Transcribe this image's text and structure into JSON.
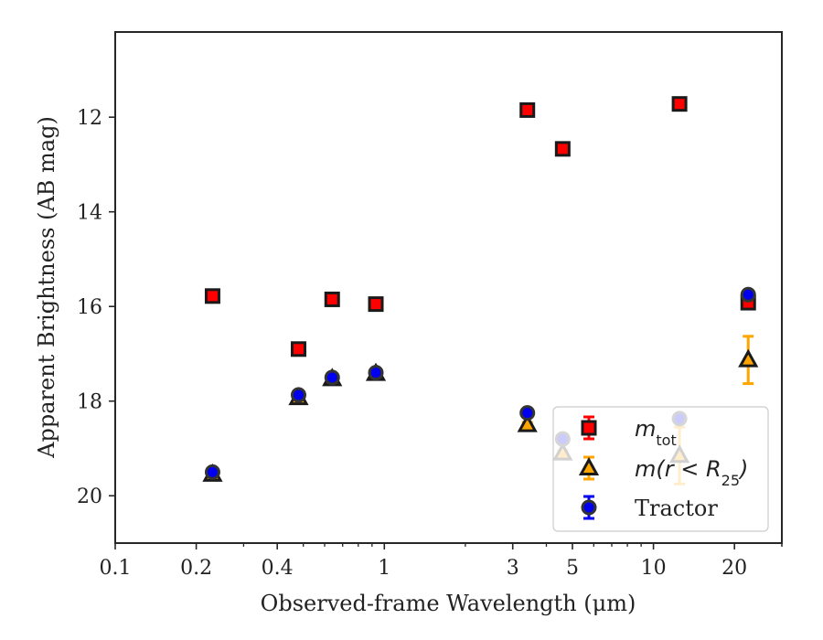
{
  "chart_data": {
    "type": "scatter",
    "xlabel": "Observed-frame Wavelength (μm)",
    "ylabel": "Apparent Brightness (AB mag)",
    "x_scale": "log",
    "xlim": [
      0.1,
      30
    ],
    "ylim": [
      21,
      10.2
    ],
    "y_inverted": true,
    "grid": false,
    "legend_position": "bottom-right",
    "x_ticks": [
      {
        "value": 0.1,
        "label": "0.1"
      },
      {
        "value": 0.2,
        "label": "0.2"
      },
      {
        "value": 0.4,
        "label": "0.4"
      },
      {
        "value": 1,
        "label": "1"
      },
      {
        "value": 3,
        "label": "3"
      },
      {
        "value": 5,
        "label": "5"
      },
      {
        "value": 10,
        "label": "10"
      },
      {
        "value": 20,
        "label": "20"
      }
    ],
    "y_ticks": [
      {
        "value": 12,
        "label": "12"
      },
      {
        "value": 14,
        "label": "14"
      },
      {
        "value": 16,
        "label": "16"
      },
      {
        "value": 18,
        "label": "18"
      },
      {
        "value": 20,
        "label": "20"
      }
    ],
    "series": [
      {
        "name": "m_tot",
        "legend_main": "m",
        "legend_sub": "tot",
        "marker": "square",
        "color": "#ff0000",
        "edge_color": "#1a1a1a",
        "points": [
          {
            "x": 0.23,
            "y": 15.78,
            "err": 0.05
          },
          {
            "x": 0.48,
            "y": 16.9,
            "err": 0.05
          },
          {
            "x": 0.64,
            "y": 15.85,
            "err": 0.05
          },
          {
            "x": 0.93,
            "y": 15.95,
            "err": 0.05
          },
          {
            "x": 3.4,
            "y": 11.85,
            "err": 0.05
          },
          {
            "x": 4.6,
            "y": 12.67,
            "err": 0.05
          },
          {
            "x": 12.5,
            "y": 11.72,
            "err": 0.05
          },
          {
            "x": 22.5,
            "y": 15.92,
            "err": 0.05
          }
        ]
      },
      {
        "name": "m(r < R25)",
        "legend_main": "m(r < R",
        "legend_sub": "25",
        "legend_end": ")",
        "marker": "triangle",
        "color": "#ffa500",
        "edge_color": "#1a1a1a",
        "points": [
          {
            "x": 0.23,
            "y": 19.55,
            "err": 0.05
          },
          {
            "x": 0.48,
            "y": 17.93,
            "err": 0.05
          },
          {
            "x": 0.64,
            "y": 17.53,
            "err": 0.05
          },
          {
            "x": 0.93,
            "y": 17.42,
            "err": 0.05
          },
          {
            "x": 3.4,
            "y": 18.5,
            "err": 0.05
          },
          {
            "x": 4.6,
            "y": 19.1,
            "err": 0.05
          },
          {
            "x": 12.5,
            "y": 19.15,
            "err": 0.6
          },
          {
            "x": 22.5,
            "y": 17.13,
            "err": 0.5
          }
        ]
      },
      {
        "name": "Tractor",
        "legend_main": "Tractor",
        "marker": "circle",
        "color": "#0000ee",
        "edge_color": "#333333",
        "points": [
          {
            "x": 0.23,
            "y": 19.5,
            "err": 0.05
          },
          {
            "x": 0.48,
            "y": 17.87,
            "err": 0.05
          },
          {
            "x": 0.64,
            "y": 17.5,
            "err": 0.05
          },
          {
            "x": 0.93,
            "y": 17.4,
            "err": 0.05
          },
          {
            "x": 3.4,
            "y": 18.25,
            "err": 0.05
          },
          {
            "x": 4.6,
            "y": 18.8,
            "err": 0.05
          },
          {
            "x": 12.5,
            "y": 18.37,
            "err": 0.05
          },
          {
            "x": 22.5,
            "y": 15.75,
            "err": 0.05
          }
        ]
      }
    ]
  }
}
